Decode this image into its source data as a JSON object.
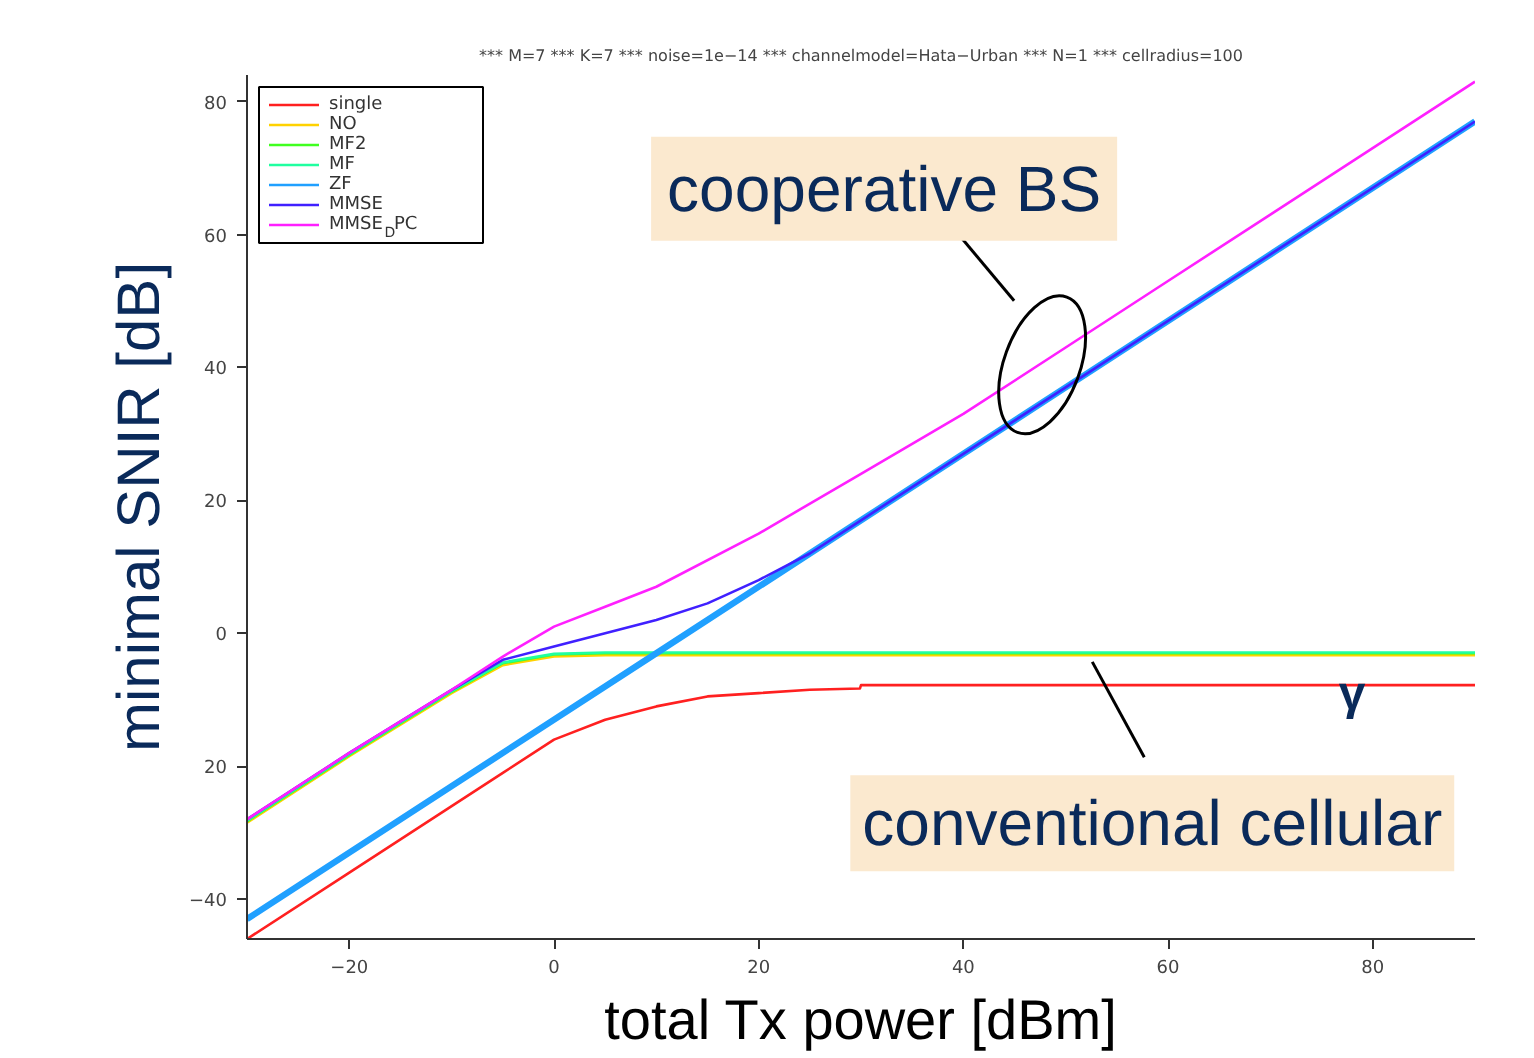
{
  "chart_data": {
    "type": "line",
    "title": "*** M=7 *** K=7 *** noise=1e−14 *** channelmodel=Hata−Urban *** N=1 *** cellradius=100",
    "xlabel": "total Tx power [dBm]",
    "ylabel": "minimal SNIR [dB]",
    "xlim": [
      -30,
      90
    ],
    "ylim": [
      -46,
      84
    ],
    "xticks": [
      -20,
      0,
      20,
      40,
      60,
      80
    ],
    "yticks": [
      {
        "value": -40,
        "label": "−40"
      },
      {
        "value": -20,
        "label": "20"
      },
      0,
      20,
      40,
      60,
      80
    ],
    "grid": false,
    "legend": "top left",
    "line_style": "solid",
    "marker": "none",
    "series": [
      {
        "name": "single",
        "color": "#ff2020",
        "x": [
          -30,
          -20,
          -10,
          -5,
          0,
          5,
          10,
          15,
          20,
          25,
          29.9,
          30,
          90
        ],
        "values": [
          -46,
          -36,
          -26,
          -21,
          -16,
          -13,
          -11,
          -9.5,
          -9,
          -8.5,
          -8.3,
          -7.8,
          -7.8
        ]
      },
      {
        "name": "NO",
        "color": "#ffd200",
        "x": [
          -30,
          -20,
          -10,
          -5,
          0,
          5,
          90
        ],
        "values": [
          -28.5,
          -18.5,
          -9,
          -4.8,
          -3.5,
          -3.3,
          -3.3
        ]
      },
      {
        "name": "MF2",
        "color": "#40ff20",
        "x": [
          -30,
          -20,
          -10,
          -5,
          0,
          5,
          90
        ],
        "values": [
          -28.3,
          -18.3,
          -8.8,
          -4.5,
          -3.2,
          -3,
          -3
        ]
      },
      {
        "name": "MF",
        "color": "#20ffa0",
        "x": [
          -30,
          -20,
          -10,
          -5,
          0,
          5,
          90
        ],
        "values": [
          -28.2,
          -18.2,
          -8.7,
          -4.4,
          -3.1,
          -2.9,
          -2.9
        ]
      },
      {
        "name": "ZF",
        "color": "#20a0ff",
        "x": [
          -30,
          -10,
          10,
          30,
          50,
          70,
          90
        ],
        "values": [
          -43,
          -23,
          -3,
          17,
          37,
          57,
          77
        ]
      },
      {
        "name": "MMSE",
        "color": "#4020ff",
        "x": [
          -30,
          -20,
          -10,
          -5,
          0,
          5,
          10,
          15,
          20,
          25,
          30,
          50,
          70,
          90
        ],
        "values": [
          -28,
          -18,
          -8.5,
          -4,
          -2,
          0,
          2,
          4.5,
          8,
          12,
          17,
          37,
          57,
          77
        ]
      },
      {
        "name": "MMSE$_{D}$PC",
        "color": "#ff20ff",
        "x": [
          -30,
          -20,
          -10,
          -5,
          0,
          5,
          10,
          20,
          30,
          40,
          50,
          60,
          70,
          80,
          90
        ],
        "values": [
          -28,
          -18,
          -8.5,
          -3.5,
          1,
          4,
          7,
          15,
          24,
          33,
          43,
          53,
          63,
          73,
          83
        ]
      }
    ],
    "annotations": [
      {
        "text": "cooperative BS",
        "x": 47.7,
        "y": 40.4
      },
      {
        "text": "conventional cellular",
        "x": 52.6,
        "y": -3
      },
      {
        "text": "γ",
        "x": 78,
        "y": -3
      }
    ]
  }
}
